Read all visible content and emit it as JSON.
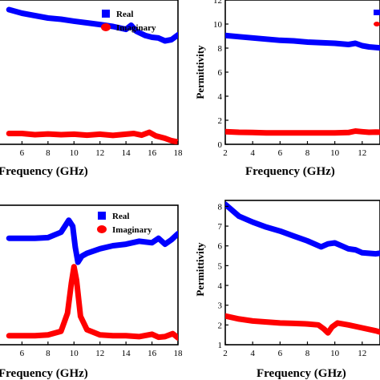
{
  "chart_data": [
    {
      "type": "line",
      "xlabel": "Frequency (GHz)",
      "ylabel": "",
      "x_ticks_visible": [
        "6",
        "8",
        "10",
        "12",
        "14",
        "16",
        "18"
      ],
      "legend": {
        "placement": "top-right",
        "entries": [
          "Real",
          "Imaginary"
        ]
      },
      "series": [
        {
          "name": "Real",
          "color": "#0000ff",
          "points": [
            [
              5,
              9.2
            ],
            [
              6,
              9.05
            ],
            [
              7,
              8.95
            ],
            [
              8,
              8.85
            ],
            [
              9,
              8.8
            ],
            [
              10,
              8.72
            ],
            [
              11,
              8.65
            ],
            [
              12,
              8.58
            ],
            [
              13,
              8.5
            ],
            [
              14,
              8.38
            ],
            [
              14.4,
              8.55
            ],
            [
              14.8,
              8.3
            ],
            [
              15.5,
              8.12
            ],
            [
              16,
              8.05
            ],
            [
              16.5,
              8.02
            ],
            [
              17,
              7.9
            ],
            [
              17.5,
              7.95
            ],
            [
              18,
              8.15
            ]
          ]
        },
        {
          "name": "Imaginary",
          "color": "#ff0000",
          "points": [
            [
              5,
              4.05
            ],
            [
              6,
              4.05
            ],
            [
              7,
              4.0
            ],
            [
              8,
              4.03
            ],
            [
              9,
              4.0
            ],
            [
              10,
              4.02
            ],
            [
              11,
              3.98
            ],
            [
              12,
              4.02
            ],
            [
              13,
              3.97
            ],
            [
              14,
              4.02
            ],
            [
              14.6,
              4.05
            ],
            [
              15.2,
              3.98
            ],
            [
              15.8,
              4.1
            ],
            [
              16.3,
              3.95
            ],
            [
              17,
              3.85
            ],
            [
              17.5,
              3.75
            ],
            [
              18,
              3.7
            ]
          ]
        }
      ]
    },
    {
      "type": "line",
      "xlabel": "Frequency (GHz)",
      "ylabel": "Permittivity",
      "y_ticks": [
        "0",
        "2",
        "4",
        "6",
        "8",
        "10",
        "12"
      ],
      "x_ticks_visible": [
        "2",
        "4",
        "6",
        "8",
        "10",
        "12"
      ],
      "ylim": [
        0,
        12
      ],
      "series": [
        {
          "name": "",
          "color": "#0000ff",
          "points": [
            [
              2,
              9.05
            ],
            [
              3,
              8.95
            ],
            [
              4,
              8.85
            ],
            [
              5,
              8.75
            ],
            [
              6,
              8.65
            ],
            [
              7,
              8.6
            ],
            [
              8,
              8.5
            ],
            [
              9,
              8.45
            ],
            [
              10,
              8.4
            ],
            [
              11,
              8.3
            ],
            [
              11.5,
              8.4
            ],
            [
              12,
              8.2
            ],
            [
              12.5,
              8.1
            ],
            [
              13,
              8.05
            ],
            [
              13.5,
              8.0
            ]
          ]
        },
        {
          "name": "",
          "color": "#ff0000",
          "points": [
            [
              2,
              1.05
            ],
            [
              3,
              1.0
            ],
            [
              4,
              0.98
            ],
            [
              5,
              0.95
            ],
            [
              6,
              0.95
            ],
            [
              7,
              0.95
            ],
            [
              8,
              0.95
            ],
            [
              9,
              0.95
            ],
            [
              10,
              0.95
            ],
            [
              11,
              0.98
            ],
            [
              11.5,
              1.1
            ],
            [
              12,
              1.05
            ],
            [
              12.5,
              1.0
            ],
            [
              13,
              1.02
            ],
            [
              13.5,
              1.0
            ]
          ]
        }
      ]
    },
    {
      "type": "line",
      "xlabel": "Frequency (GHz)",
      "ylabel": "",
      "x_ticks_visible": [
        "6",
        "8",
        "10",
        "12",
        "14",
        "16",
        "18"
      ],
      "legend": {
        "placement": "top-right",
        "entries": [
          "Real",
          "Imaginary"
        ]
      },
      "series": [
        {
          "name": "Real",
          "color": "#0000ff",
          "points": [
            [
              5,
              7.0
            ],
            [
              6,
              7.0
            ],
            [
              7,
              7.0
            ],
            [
              8,
              7.02
            ],
            [
              9,
              7.2
            ],
            [
              9.6,
              7.6
            ],
            [
              9.9,
              7.4
            ],
            [
              10.1,
              6.7
            ],
            [
              10.3,
              6.2
            ],
            [
              10.6,
              6.4
            ],
            [
              11,
              6.5
            ],
            [
              12,
              6.65
            ],
            [
              13,
              6.75
            ],
            [
              14,
              6.8
            ],
            [
              15,
              6.9
            ],
            [
              16,
              6.85
            ],
            [
              16.5,
              7.0
            ],
            [
              17,
              6.8
            ],
            [
              17.5,
              6.95
            ],
            [
              18,
              7.15
            ]
          ]
        },
        {
          "name": "Imaginary",
          "color": "#ff0000",
          "points": [
            [
              5,
              3.75
            ],
            [
              6,
              3.75
            ],
            [
              7,
              3.75
            ],
            [
              8,
              3.78
            ],
            [
              9,
              3.9
            ],
            [
              9.5,
              4.5
            ],
            [
              9.8,
              5.5
            ],
            [
              10,
              6.05
            ],
            [
              10.2,
              5.6
            ],
            [
              10.5,
              4.4
            ],
            [
              11,
              3.95
            ],
            [
              12,
              3.78
            ],
            [
              13,
              3.75
            ],
            [
              14,
              3.75
            ],
            [
              15,
              3.72
            ],
            [
              16,
              3.8
            ],
            [
              16.5,
              3.7
            ],
            [
              17,
              3.72
            ],
            [
              17.6,
              3.82
            ],
            [
              18,
              3.68
            ]
          ]
        }
      ]
    },
    {
      "type": "line",
      "xlabel": "Frequency (GHz)",
      "ylabel": "Permittivity",
      "y_ticks": [
        "1",
        "2",
        "3",
        "4",
        "5",
        "6",
        "7",
        "8"
      ],
      "x_ticks_visible": [
        "2",
        "4",
        "6",
        "8",
        "10",
        "12"
      ],
      "ylim": [
        1,
        8.3
      ],
      "series": [
        {
          "name": "",
          "color": "#0000ff",
          "points": [
            [
              2,
              8.1
            ],
            [
              3,
              7.5
            ],
            [
              4,
              7.2
            ],
            [
              5,
              6.95
            ],
            [
              6,
              6.75
            ],
            [
              7,
              6.5
            ],
            [
              8,
              6.25
            ],
            [
              9,
              5.95
            ],
            [
              9.5,
              6.1
            ],
            [
              10,
              6.15
            ],
            [
              10.5,
              6.0
            ],
            [
              11,
              5.85
            ],
            [
              11.5,
              5.8
            ],
            [
              12,
              5.65
            ],
            [
              13,
              5.6
            ],
            [
              13.5,
              5.65
            ]
          ]
        },
        {
          "name": "",
          "color": "#ff0000",
          "points": [
            [
              2,
              2.45
            ],
            [
              3,
              2.3
            ],
            [
              4,
              2.2
            ],
            [
              5,
              2.15
            ],
            [
              6,
              2.1
            ],
            [
              7,
              2.08
            ],
            [
              8,
              2.05
            ],
            [
              8.8,
              2.0
            ],
            [
              9.2,
              1.8
            ],
            [
              9.5,
              1.6
            ],
            [
              9.8,
              1.9
            ],
            [
              10.2,
              2.1
            ],
            [
              11,
              2.0
            ],
            [
              12,
              1.85
            ],
            [
              13,
              1.7
            ],
            [
              13.5,
              1.6
            ]
          ]
        }
      ]
    }
  ]
}
